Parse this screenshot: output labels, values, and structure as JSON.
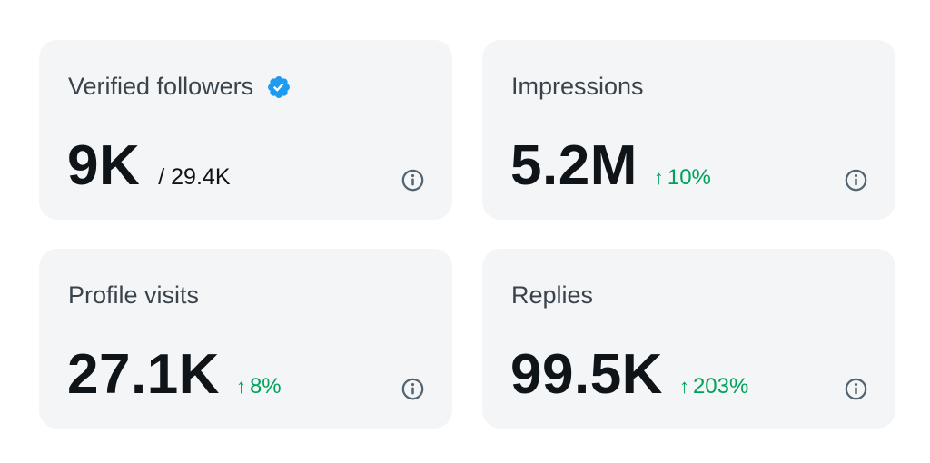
{
  "cards": [
    {
      "title": "Verified followers",
      "value": "9K",
      "total": "/ 29.4K",
      "icons": [
        "verified-badge-icon",
        "info-icon"
      ]
    },
    {
      "title": "Impressions",
      "value": "5.2M",
      "change": "10%",
      "arrow": "↑",
      "icons": [
        "up-arrow-icon",
        "info-icon"
      ]
    },
    {
      "title": "Profile visits",
      "value": "27.1K",
      "change": "8%",
      "arrow": "↑",
      "icons": [
        "up-arrow-icon",
        "info-icon"
      ]
    },
    {
      "title": "Replies",
      "value": "99.5K",
      "change": "203%",
      "arrow": "↑",
      "icons": [
        "up-arrow-icon",
        "info-icon"
      ]
    }
  ],
  "colors": {
    "card_background": "#f3f5f6",
    "title_text": "#3a434c",
    "value_text": "#0f1419",
    "positive_change": "#00a25a",
    "verified_badge": "#1d9bf0",
    "info_icon": "#536471"
  }
}
